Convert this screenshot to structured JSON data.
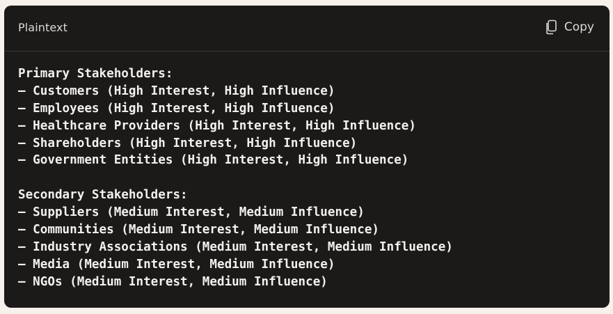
{
  "header": {
    "language": "Plaintext",
    "copy_label": "Copy",
    "copy_icon": "copy-icon"
  },
  "lines": [
    "Primary Stakeholders:",
    "– Customers (High Interest, High Influence)",
    "– Employees (High Interest, High Influence)",
    "– Healthcare Providers (High Interest, High Influence)",
    "– Shareholders (High Interest, High Influence)",
    "– Government Entities (High Interest, High Influence)",
    "",
    "Secondary Stakeholders:",
    "– Suppliers (Medium Interest, Medium Influence)",
    "– Communities (Medium Interest, Medium Influence)",
    "– Industry Associations (Medium Interest, Medium Influence)",
    "– Media (Medium Interest, Medium Influence)",
    "– NGOs (Medium Interest, Medium Influence)"
  ],
  "colors": {
    "page_background": "#f7f1ec",
    "card_background": "#1c1a19",
    "text": "#f2f1ee",
    "header_text": "#dcdad6",
    "divider": "#3a3837"
  }
}
